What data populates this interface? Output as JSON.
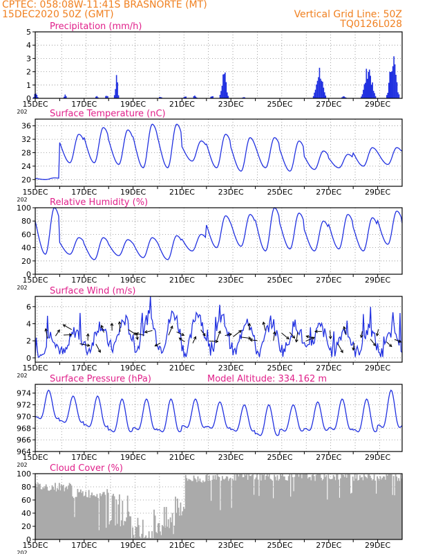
{
  "header": {
    "line1_left": "CPTEC:   058:08W-11:41S   BRASNORTE (MT)",
    "line2_left": "15DEC2020 50Z (GMT)",
    "line1_right": "Vertical Grid Line: 50Z",
    "line2_right": "TQ0126L028"
  },
  "colors": {
    "header": "#f08020",
    "title": "#e0208a",
    "line": "#2030e0",
    "cloud": "#aaaaaa",
    "arrow": "#000000"
  },
  "x_tick_labels": [
    "15DEC",
    "17DEC",
    "19DEC",
    "21DEC",
    "23DEC",
    "25DEC",
    "27DEC",
    "29DEC"
  ],
  "x_tick_fragment": "202",
  "panels": {
    "precip": {
      "title": "Precipitation (mm/h)",
      "ylim": [
        0,
        5
      ],
      "yticks": [
        0,
        1,
        2,
        3,
        4,
        5
      ],
      "type": "bar",
      "events": [
        {
          "day": 15.0,
          "peak": 0.6,
          "width": 0.05
        },
        {
          "day": 16.2,
          "peak": 0.3,
          "width": 0.05
        },
        {
          "day": 17.5,
          "peak": 0.2,
          "width": 0.05
        },
        {
          "day": 17.9,
          "peak": 0.3,
          "width": 0.05
        },
        {
          "day": 18.3,
          "peak": 1.8,
          "width": 0.04
        },
        {
          "day": 20.1,
          "peak": 0.15,
          "width": 0.05
        },
        {
          "day": 21.1,
          "peak": 0.2,
          "width": 0.05
        },
        {
          "day": 21.5,
          "peak": 0.3,
          "width": 0.05
        },
        {
          "day": 22.2,
          "peak": 0.25,
          "width": 0.05
        },
        {
          "day": 22.7,
          "peak": 2.5,
          "width": 0.08
        },
        {
          "day": 23.5,
          "peak": 0.15,
          "width": 0.05
        },
        {
          "day": 26.4,
          "peak": 0.2,
          "width": 0.05
        },
        {
          "day": 26.6,
          "peak": 2.6,
          "width": 0.12
        },
        {
          "day": 27.6,
          "peak": 0.2,
          "width": 0.06
        },
        {
          "day": 28.6,
          "peak": 2.8,
          "width": 0.15
        },
        {
          "day": 29.6,
          "peak": 3.9,
          "width": 0.12
        }
      ]
    },
    "temp": {
      "title": "Surface Temperature (nC)",
      "ylim": [
        18,
        38
      ],
      "yticks": [
        20,
        24,
        28,
        32,
        36
      ],
      "type": "line",
      "max": [
        20.5,
        33.5,
        35.5,
        34.8,
        36.5,
        36.5,
        31.5,
        33.5,
        32.5,
        32.5,
        31.5,
        28.5,
        27.5,
        29.5,
        29.5,
        29.5
      ],
      "min": [
        20.0,
        25.0,
        25.0,
        24.5,
        23.5,
        23.5,
        25.5,
        23.5,
        22.5,
        23.5,
        22.5,
        23.0,
        23.5,
        24.0,
        24.5,
        26.5
      ]
    },
    "rh": {
      "title": "Relative Humidity (%)",
      "ylim": [
        0,
        100
      ],
      "yticks": [
        0,
        20,
        40,
        60,
        80,
        100
      ],
      "type": "line",
      "max": [
        100,
        55,
        55,
        52,
        55,
        58,
        60,
        88,
        90,
        100,
        92,
        80,
        90,
        85,
        95,
        88
      ],
      "min": [
        30,
        30,
        22,
        28,
        25,
        22,
        35,
        40,
        42,
        35,
        38,
        35,
        38,
        35,
        45,
        50
      ]
    },
    "wind": {
      "title": "Surface Wind (m/s)",
      "ylim": [
        -0.5,
        7.2
      ],
      "yticks": [
        0,
        2,
        4,
        6
      ],
      "type": "line",
      "base": [
        1.5,
        1.8,
        2.4,
        2.8,
        3.0,
        3.2,
        3.0,
        2.6,
        2.6,
        2.4,
        2.4,
        2.2,
        2.0,
        2.0,
        2.0,
        2.0
      ],
      "amp": [
        1.2,
        1.3,
        1.5,
        1.6,
        1.8,
        2.0,
        2.4,
        2.0,
        2.0,
        1.8,
        1.5,
        1.4,
        1.3,
        1.3,
        1.5,
        1.5
      ]
    },
    "pres": {
      "title": "Surface Pressure (hPa)",
      "ylim": [
        964,
        975.5
      ],
      "yticks": [
        964,
        966,
        968,
        970,
        972,
        974
      ],
      "type": "line",
      "max": [
        974.5,
        973.5,
        973.5,
        973.0,
        973.0,
        973.0,
        973.0,
        972.5,
        972.0,
        972.0,
        972.0,
        972.5,
        973.0,
        973.0,
        974.5,
        972.0
      ],
      "min": [
        968.0,
        967.5,
        966.5,
        965.5,
        966.0,
        965.5,
        966.5,
        966.5,
        966.0,
        965.0,
        966.0,
        966.0,
        966.0,
        965.5,
        966.0,
        967.0
      ]
    },
    "cloud": {
      "title": "Cloud Cover (%)",
      "ylim": [
        0,
        100
      ],
      "yticks": [
        0,
        20,
        40,
        60,
        80,
        100
      ],
      "type": "area",
      "segments": [
        {
          "start": 15.0,
          "end": 16.5,
          "level": 80
        },
        {
          "start": 16.5,
          "end": 18.0,
          "level": 70
        },
        {
          "start": 18.0,
          "end": 18.9,
          "level": 45
        },
        {
          "start": 18.9,
          "end": 19.2,
          "level": 10
        },
        {
          "start": 19.2,
          "end": 19.8,
          "level": 12
        },
        {
          "start": 19.8,
          "end": 20.7,
          "level": 25
        },
        {
          "start": 20.7,
          "end": 21.1,
          "level": 55
        },
        {
          "start": 21.1,
          "end": 22.0,
          "level": 92
        },
        {
          "start": 22.0,
          "end": 30.0,
          "level": 96
        }
      ]
    }
  },
  "model_altitude": "Model Altitude: 334.162 m"
}
